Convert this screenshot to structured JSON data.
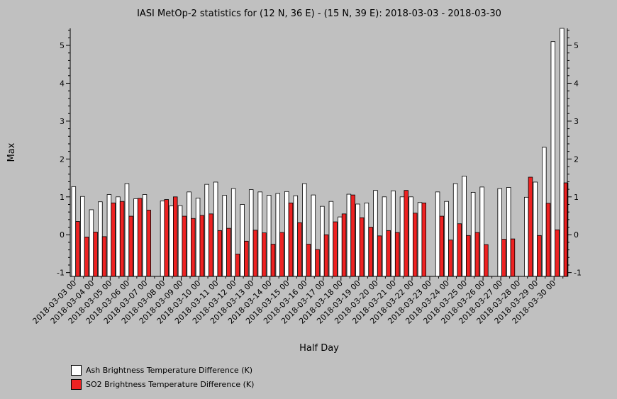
{
  "chart_data": {
    "type": "bar",
    "title": "IASI MetOp-2 statistics for (12 N, 36 E) - (15 N, 39 E): 2018-03-03 - 2018-03-30",
    "xlabel": "Half Day",
    "ylabel": "Max",
    "ylim": [
      -1.1,
      5.45
    ],
    "yticks": [
      -1,
      0,
      1,
      2,
      3,
      4,
      5
    ],
    "categories": [
      "2018-03-03 00",
      "2018-03-03 12",
      "2018-03-04 00",
      "2018-03-04 12",
      "2018-03-05 00",
      "2018-03-05 12",
      "2018-03-06 00",
      "2018-03-06 12",
      "2018-03-07 00",
      "2018-03-07 12",
      "2018-03-08 00",
      "2018-03-08 12",
      "2018-03-09 00",
      "2018-03-09 12",
      "2018-03-10 00",
      "2018-03-10 12",
      "2018-03-11 00",
      "2018-03-11 12",
      "2018-03-12 00",
      "2018-03-12 12",
      "2018-03-13 00",
      "2018-03-13 12",
      "2018-03-14 00",
      "2018-03-14 12",
      "2018-03-15 00",
      "2018-03-15 12",
      "2018-03-16 00",
      "2018-03-16 12",
      "2018-03-17 00",
      "2018-03-17 12",
      "2018-03-18 00",
      "2018-03-18 12",
      "2018-03-19 00",
      "2018-03-19 12",
      "2018-03-20 00",
      "2018-03-20 12",
      "2018-03-21 00",
      "2018-03-21 12",
      "2018-03-22 00",
      "2018-03-22 12",
      "2018-03-23 00",
      "2018-03-23 12",
      "2018-03-24 00",
      "2018-03-24 12",
      "2018-03-25 00",
      "2018-03-25 12",
      "2018-03-26 00",
      "2018-03-26 12",
      "2018-03-27 00",
      "2018-03-27 12",
      "2018-03-28 00",
      "2018-03-28 12",
      "2018-03-29 00",
      "2018-03-29 12",
      "2018-03-30 00",
      "2018-03-30 12"
    ],
    "tick_labels": [
      "2018-03-03 00",
      "2018-03-04 00",
      "2018-03-05 00",
      "2018-03-06 00",
      "2018-03-07 00",
      "2018-03-08 00",
      "2018-03-09 00",
      "2018-03-10 00",
      "2018-03-11 00",
      "2018-03-12 00",
      "2018-03-13 00",
      "2018-03-14 00",
      "2018-03-15 00",
      "2018-03-16 00",
      "2018-03-17 00",
      "2018-03-18 00",
      "2018-03-19 00",
      "2018-03-20 00",
      "2018-03-21 00",
      "2018-03-22 00",
      "2018-03-23 00",
      "2018-03-24 00",
      "2018-03-25 00",
      "2018-03-26 00",
      "2018-03-27 00",
      "2018-03-28 00",
      "2018-03-29 00",
      "2018-03-30 00"
    ],
    "series": [
      {
        "name": "Ash Brightness Temperature Difference (K)",
        "color": "#ffffff",
        "values": [
          1.27,
          1.01,
          0.66,
          0.87,
          1.06,
          1.0,
          1.35,
          0.95,
          1.06,
          null,
          0.89,
          0.76,
          0.77,
          1.13,
          0.97,
          1.33,
          1.39,
          1.04,
          1.22,
          0.8,
          1.19,
          1.13,
          1.04,
          1.09,
          1.14,
          1.03,
          1.35,
          1.05,
          0.75,
          0.88,
          0.47,
          1.07,
          0.81,
          0.84,
          1.17,
          1.0,
          1.16,
          1.0,
          1.0,
          0.85,
          null,
          1.13,
          0.88,
          1.35,
          1.55,
          1.12,
          1.26,
          null,
          1.22,
          1.25,
          null,
          0.99,
          1.39,
          2.31,
          5.1,
          5.45
        ]
      },
      {
        "name": "SO2 Brightness Temperature Difference (K)",
        "color": "#ee2222",
        "values": [
          0.35,
          -0.06,
          0.07,
          -0.05,
          0.84,
          0.88,
          0.49,
          0.96,
          0.65,
          null,
          0.93,
          1.0,
          0.49,
          0.43,
          0.51,
          0.55,
          0.11,
          0.17,
          -0.51,
          -0.17,
          0.12,
          0.05,
          -0.25,
          0.06,
          0.84,
          0.32,
          -0.25,
          -0.39,
          0.0,
          0.34,
          0.55,
          1.05,
          0.45,
          0.2,
          -0.03,
          0.11,
          0.06,
          1.17,
          0.57,
          0.84,
          null,
          0.49,
          -0.14,
          0.29,
          -0.02,
          0.06,
          -0.26,
          null,
          -0.12,
          -0.11,
          null,
          1.52,
          -0.02,
          0.83,
          0.13,
          1.37
        ]
      }
    ],
    "grid": false,
    "legend_position": "bottom-left"
  }
}
